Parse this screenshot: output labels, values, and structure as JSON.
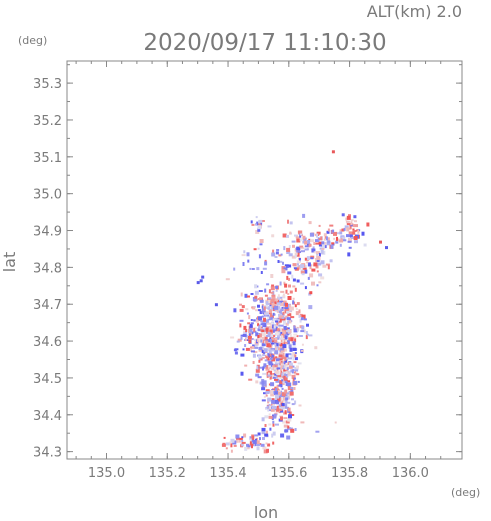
{
  "chart_data": {
    "type": "scatter",
    "title": "2020/09/17 11:10:30",
    "subtitle": "ALT(km) 2.0",
    "xlabel": "lon",
    "ylabel": "lat",
    "x_unit": "(deg)",
    "y_unit": "(deg)",
    "xlim": [
      134.87,
      136.17
    ],
    "ylim": [
      34.28,
      35.36
    ],
    "x_ticks": [
      135.0,
      135.2,
      135.4,
      135.6,
      135.8,
      136.0
    ],
    "x_tick_labels": [
      "135.0",
      "135.2",
      "135.4",
      "135.6",
      "135.8",
      "136.0"
    ],
    "y_ticks": [
      34.3,
      34.4,
      34.5,
      34.6,
      34.7,
      34.8,
      34.9,
      35.0,
      35.1,
      35.2,
      35.3
    ],
    "y_tick_labels": [
      "34.3",
      "34.4",
      "34.5",
      "34.6",
      "34.7",
      "34.8",
      "34.9",
      "35.0",
      "35.1",
      "35.2",
      "35.3"
    ],
    "grid": false,
    "colors": {
      "positive": "#e8585a",
      "negative": "#5a5ae8",
      "axis": "#888888"
    },
    "clusters": [
      {
        "lon": 135.545,
        "lat": 34.63,
        "slon": 0.05,
        "slat": 0.06,
        "n": 520
      },
      {
        "lon": 135.57,
        "lat": 34.5,
        "slon": 0.03,
        "slat": 0.05,
        "n": 220
      },
      {
        "lon": 135.56,
        "lat": 34.43,
        "slon": 0.025,
        "slat": 0.025,
        "n": 70
      },
      {
        "lon": 135.64,
        "lat": 34.83,
        "slon": 0.04,
        "slat": 0.04,
        "n": 130
      },
      {
        "lon": 135.73,
        "lat": 34.88,
        "slon": 0.05,
        "slat": 0.02,
        "n": 70
      },
      {
        "lon": 135.8,
        "lat": 34.91,
        "slon": 0.02,
        "slat": 0.02,
        "n": 40
      },
      {
        "lon": 135.5,
        "lat": 34.92,
        "slon": 0.02,
        "slat": 0.008,
        "n": 15
      },
      {
        "lon": 135.5,
        "lat": 34.84,
        "slon": 0.04,
        "slat": 0.04,
        "n": 25
      },
      {
        "lon": 135.47,
        "lat": 34.33,
        "slon": 0.05,
        "slat": 0.012,
        "n": 60
      },
      {
        "lon": 135.57,
        "lat": 34.36,
        "slon": 0.05,
        "slat": 0.01,
        "n": 20
      },
      {
        "lon": 135.55,
        "lat": 34.7,
        "slon": 0.05,
        "slat": 0.02,
        "n": 60
      }
    ],
    "points": [
      {
        "lon": 135.745,
        "lat": 35.115,
        "v": 1
      },
      {
        "lon": 135.3,
        "lat": 34.76,
        "v": -1
      },
      {
        "lon": 135.315,
        "lat": 34.775,
        "v": -1
      },
      {
        "lon": 135.31,
        "lat": 34.765,
        "v": -1
      },
      {
        "lon": 135.36,
        "lat": 34.7,
        "v": -1
      },
      {
        "lon": 135.47,
        "lat": 34.6,
        "v": 1
      },
      {
        "lon": 135.92,
        "lat": 34.855,
        "v": -1
      },
      {
        "lon": 135.9,
        "lat": 34.87,
        "v": 1
      }
    ]
  }
}
